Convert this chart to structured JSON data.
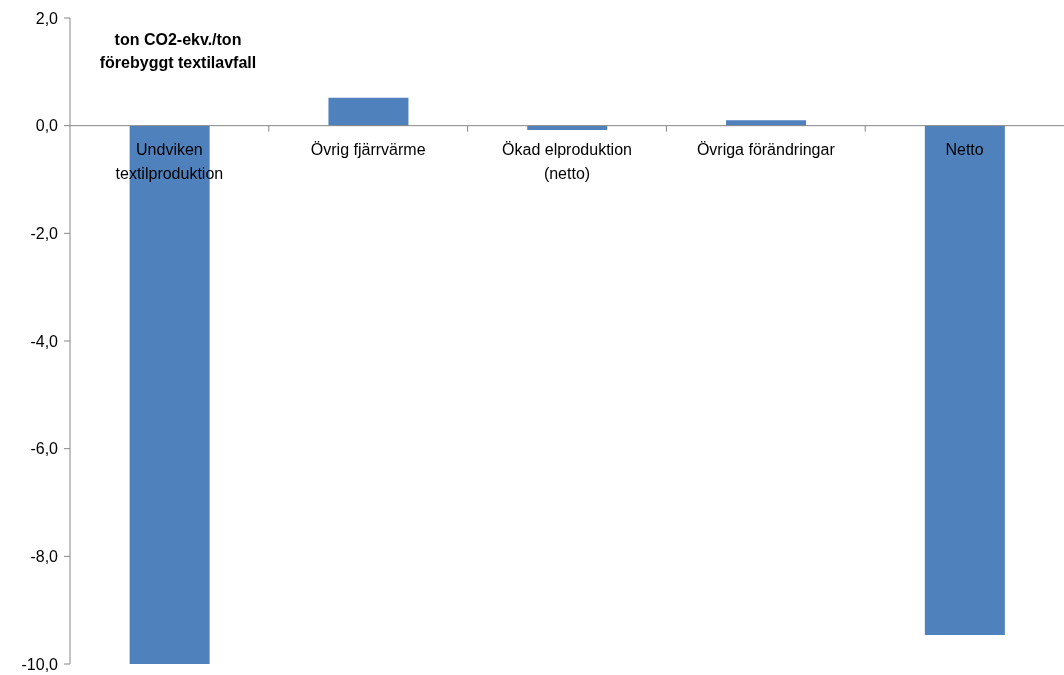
{
  "chart_data": {
    "type": "bar",
    "ylabel": "ton CO2-ekv./ton förebyggt textilavfall",
    "categories": [
      "Undviken textilproduktion",
      "Övrig fjärrvärme",
      "Ökad elproduktion (netto)",
      "Övriga förändringar",
      "Netto"
    ],
    "values": [
      -10.0,
      0.52,
      -0.08,
      0.1,
      -9.46
    ],
    "color": "#4f81bd",
    "ylim": [
      -10,
      2
    ],
    "yticks": [
      {
        "value": -10,
        "label": "-10,0"
      },
      {
        "value": -8,
        "label": "-8,0"
      },
      {
        "value": -6,
        "label": "-6,0"
      },
      {
        "value": -4,
        "label": "-4,0"
      },
      {
        "value": -2,
        "label": "-2,0"
      },
      {
        "value": 0,
        "label": "0,0"
      },
      {
        "value": 2,
        "label": "2,0"
      }
    ]
  }
}
